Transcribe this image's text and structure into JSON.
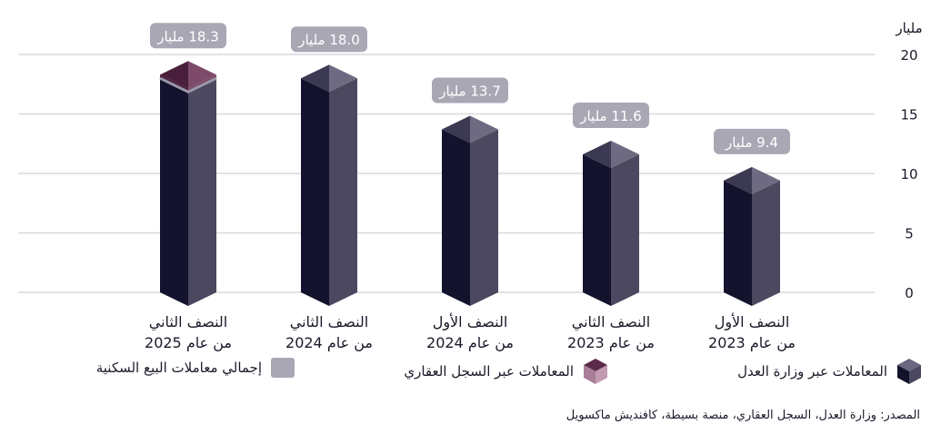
{
  "chart_data": {
    "type": "bar",
    "stacked": true,
    "title": "",
    "ylabel": "مليار",
    "ylim": [
      0,
      20
    ],
    "yticks": [
      0,
      5,
      10,
      15,
      20
    ],
    "grid": true,
    "direction": "right-to-left",
    "categories": [
      [
        "النصف الأول",
        "من عام 2023"
      ],
      [
        "النصف الثاني",
        "من عام 2023"
      ],
      [
        "النصف الأول",
        "من عام 2024"
      ],
      [
        "النصف الثاني",
        "من عام 2024"
      ],
      [
        "النصف الثاني",
        "من عام 2025"
      ]
    ],
    "series": [
      {
        "name": "المعاملات عبر وزارة العدل",
        "values": [
          9.4,
          11.6,
          13.7,
          18.0,
          18.0
        ]
      },
      {
        "name": "المعاملات عبر السجل العقاري",
        "values": [
          0,
          0,
          0,
          0,
          0.3
        ]
      }
    ],
    "totals_series_name": "إجمالي معاملات البيع السكنية",
    "data_labels": [
      "9.4 مليار",
      "11.6 مليار",
      "13.7 مليار",
      "18.0 مليار",
      "18.3 مليار"
    ],
    "legend_position": "bottom"
  },
  "colors": {
    "ministry_dark": "#14132e",
    "ministry_light": "#4b485f",
    "registry_dark": "#4a1f3c",
    "registry_light": "#7d4a6a",
    "total": "#a9a7b4",
    "grid": "#d9d9de"
  },
  "source": "المصدر: وزارة العدل، السجل العقاري، منصة بسيطة، كافنديش ماكسويل"
}
